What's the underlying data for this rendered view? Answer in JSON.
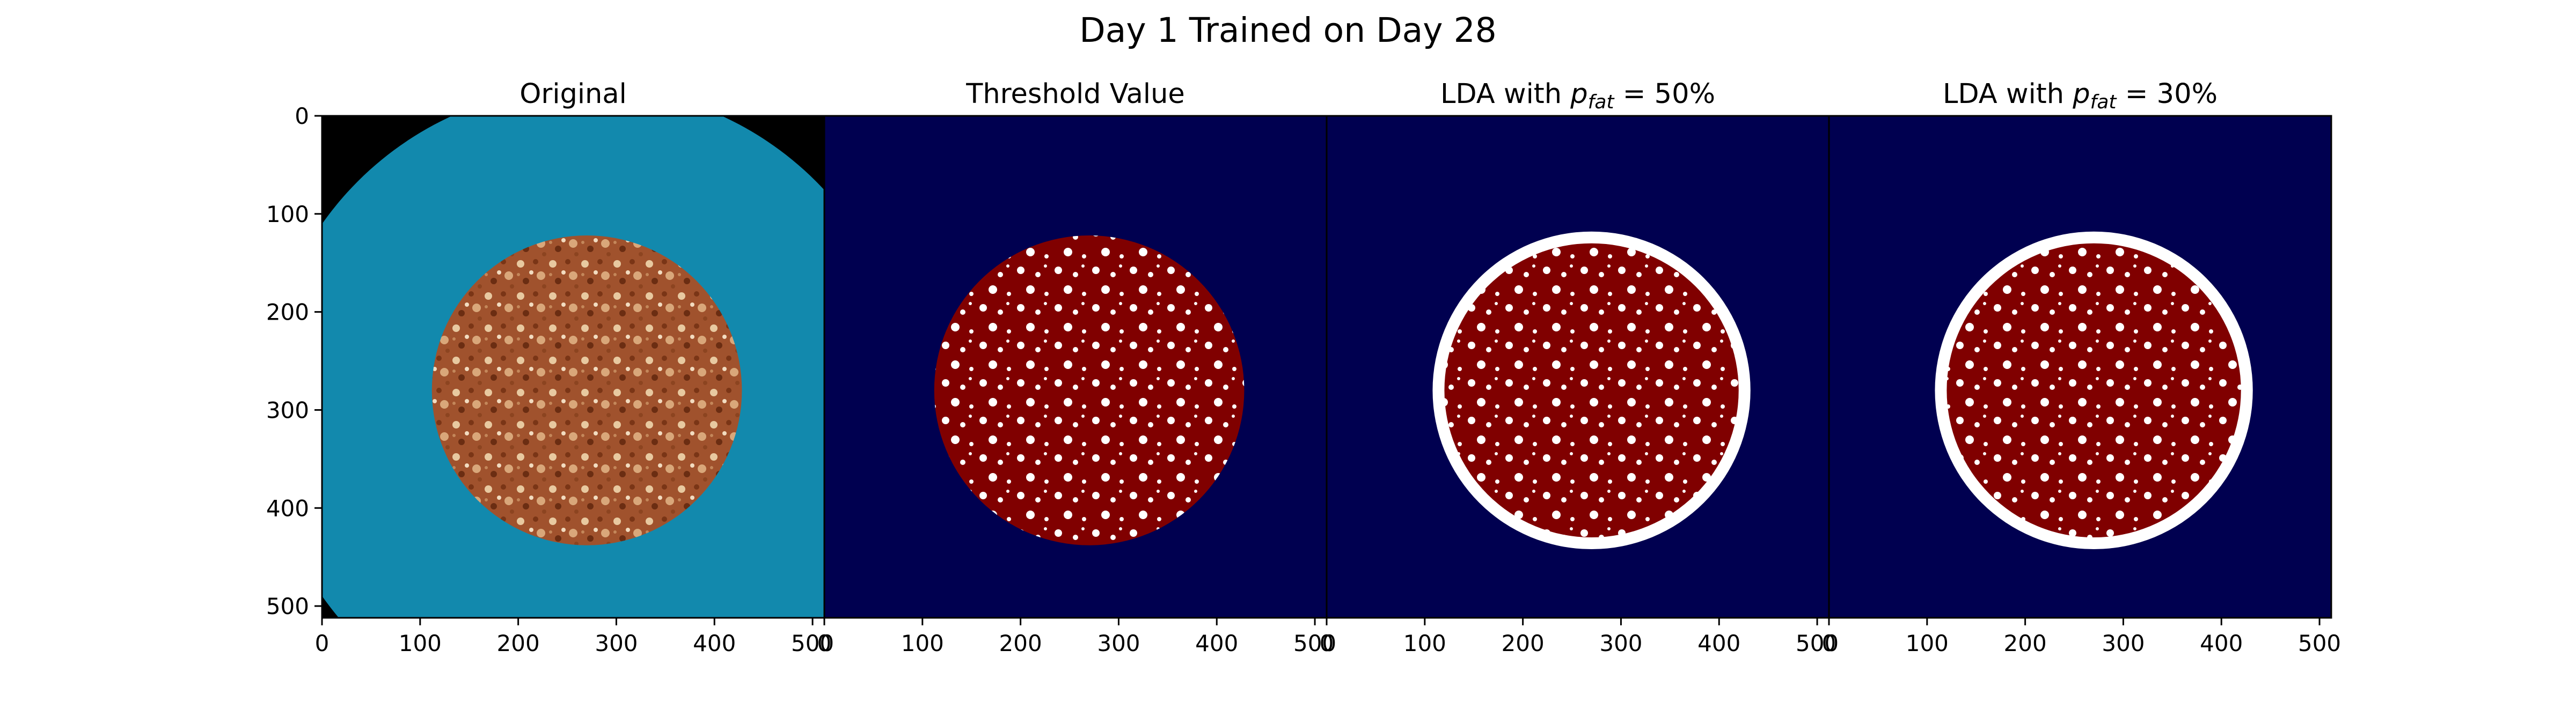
{
  "figure": {
    "suptitle": "Day 1 Trained on Day 28"
  },
  "panels": [
    {
      "id": "original",
      "title": "Original",
      "title_math": false
    },
    {
      "id": "threshold",
      "title": "Threshold Value",
      "title_math": false
    },
    {
      "id": "lda50",
      "title_prefix": "LDA with ",
      "title_var": "p",
      "title_sub": "fat",
      "title_suffix": " = 50%",
      "title_math": true
    },
    {
      "id": "lda30",
      "title_prefix": "LDA with ",
      "title_var": "p",
      "title_sub": "fat",
      "title_suffix": " = 30%",
      "title_math": true
    }
  ],
  "axes": {
    "x_ticks": [
      0,
      100,
      200,
      300,
      400,
      500
    ],
    "y_ticks": [
      0,
      100,
      200,
      300,
      400,
      500
    ],
    "xlim": [
      0,
      512
    ],
    "ylim": [
      512,
      0
    ]
  },
  "colors": {
    "background_mask": "#000050",
    "sample_mask": "#800000",
    "fat_mask": "#ffffff",
    "original_border": "#000000",
    "original_dish": "#1289ad",
    "original_sample": "#a0522d"
  },
  "image_content": {
    "sample_circle_center": [
      270,
      280
    ],
    "sample_circle_radius": 158,
    "lda_circle_radius": 162,
    "dish_circle_center": [
      270,
      300
    ],
    "dish_circle_radius": 330
  }
}
